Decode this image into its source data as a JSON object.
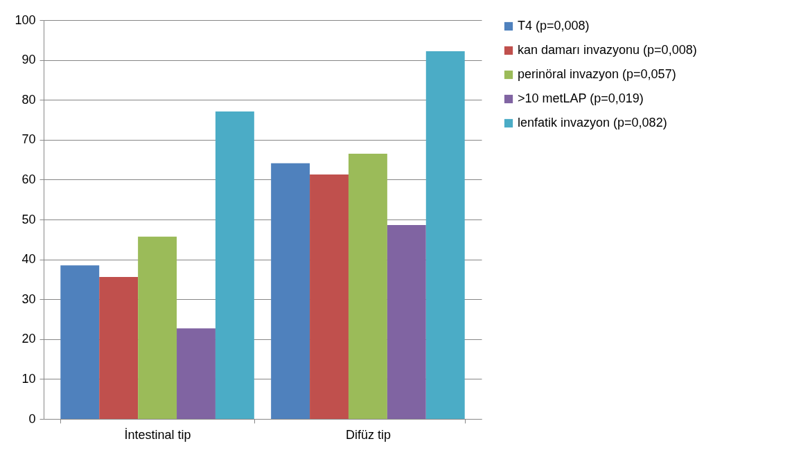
{
  "chart_data": {
    "type": "bar",
    "categories": [
      "İntestinal tip",
      "Difüz tip"
    ],
    "series": [
      {
        "name": "T4  (p=0,008)",
        "color": "#4f81bd",
        "values": [
          38.5,
          64.1
        ]
      },
      {
        "name": "kan damarı invazyonu (p=0,008)",
        "color": "#c0504d",
        "values": [
          35.6,
          61.3
        ]
      },
      {
        "name": "perinöral invazyon (p=0,057)",
        "color": "#9bbb59",
        "values": [
          45.7,
          66.5
        ]
      },
      {
        "name": ">10 metLAP (p=0,019)",
        "color": "#8064a2",
        "values": [
          22.7,
          48.6
        ]
      },
      {
        "name": "lenfatik invazyon (p=0,082)",
        "color": "#4bacc6",
        "values": [
          77.1,
          92.2
        ]
      }
    ],
    "ylim": [
      0,
      100
    ],
    "yticks": [
      0,
      10,
      20,
      30,
      40,
      50,
      60,
      70,
      80,
      90,
      100
    ],
    "grid": "y",
    "legend": "right"
  }
}
